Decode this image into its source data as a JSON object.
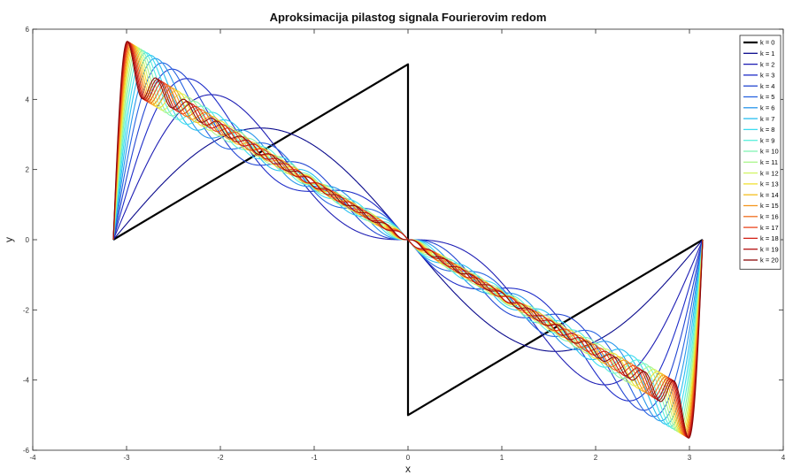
{
  "chart_data": {
    "type": "line",
    "title": "Aproksimacija pilastog signala Fourierovim redom",
    "xlabel": "x",
    "ylabel": "y",
    "xlim": [
      -4,
      4
    ],
    "ylim": [
      -6,
      6
    ],
    "xticks": [
      -4,
      -3,
      -2,
      -1,
      0,
      1,
      2,
      3,
      4
    ],
    "yticks": [
      -6,
      -4,
      -2,
      0,
      2,
      4,
      6
    ],
    "grid": false,
    "legend_position": "top-right",
    "x_domain": [
      -3.1416,
      3.1416
    ],
    "series": [
      {
        "name": "k = 0",
        "color": "#000000",
        "type": "sawtooth",
        "harmonics": 0
      },
      {
        "name": "k = 1",
        "color": "#0a0a8c",
        "harmonics": 1
      },
      {
        "name": "k = 2",
        "color": "#1e1eb4",
        "harmonics": 2
      },
      {
        "name": "k = 3",
        "color": "#1e2cc8",
        "harmonics": 3
      },
      {
        "name": "k = 4",
        "color": "#2346d2",
        "harmonics": 4
      },
      {
        "name": "k = 5",
        "color": "#2864e1",
        "harmonics": 5
      },
      {
        "name": "k = 6",
        "color": "#2896eb",
        "harmonics": 6
      },
      {
        "name": "k = 7",
        "color": "#28bef0",
        "harmonics": 7
      },
      {
        "name": "k = 8",
        "color": "#3cdcf0",
        "harmonics": 8
      },
      {
        "name": "k = 9",
        "color": "#5af0dc",
        "harmonics": 9
      },
      {
        "name": "k = 10",
        "color": "#82f5b4",
        "harmonics": 10
      },
      {
        "name": "k = 11",
        "color": "#aaf58c",
        "harmonics": 11
      },
      {
        "name": "k = 12",
        "color": "#d2f564",
        "harmonics": 12
      },
      {
        "name": "k = 13",
        "color": "#f0e132",
        "harmonics": 13
      },
      {
        "name": "k = 14",
        "color": "#f5be1e",
        "harmonics": 14
      },
      {
        "name": "k = 15",
        "color": "#f5961e",
        "harmonics": 15
      },
      {
        "name": "k = 16",
        "color": "#f06e1e",
        "harmonics": 16
      },
      {
        "name": "k = 17",
        "color": "#eb461e",
        "harmonics": 17
      },
      {
        "name": "k = 18",
        "color": "#d21e14",
        "harmonics": 18
      },
      {
        "name": "k = 19",
        "color": "#b40f0f",
        "harmonics": 19
      },
      {
        "name": "k = 20",
        "color": "#8c0a0a",
        "harmonics": 20
      }
    ]
  }
}
